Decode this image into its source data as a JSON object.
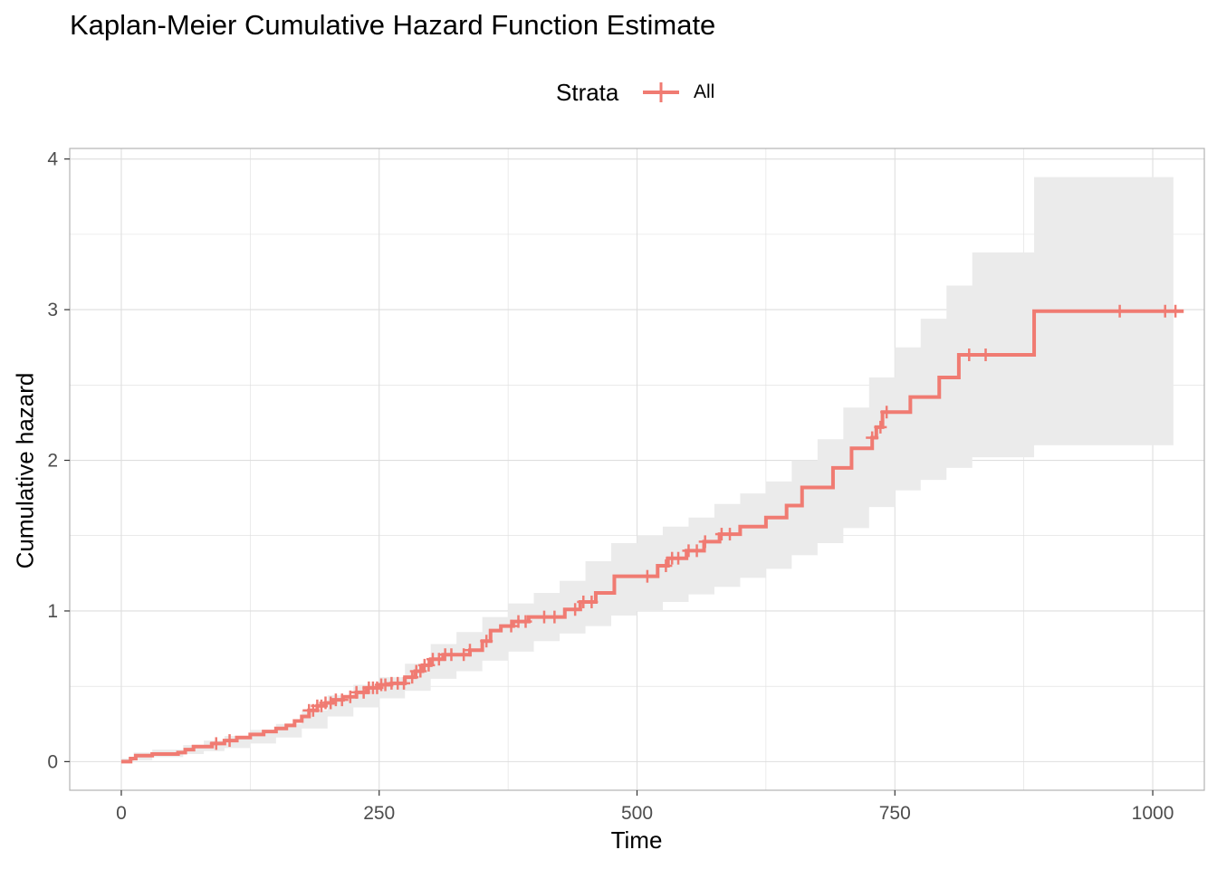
{
  "chart_data": {
    "type": "line",
    "title": "Kaplan-Meier Cumulative Hazard Function Estimate",
    "xlabel": "Time",
    "ylabel": "Cumulative hazard",
    "xlim": [
      -50,
      1050
    ],
    "ylim": [
      -0.19,
      4.07
    ],
    "x_ticks": [
      0,
      250,
      500,
      750,
      1000
    ],
    "y_ticks": [
      0,
      1,
      2,
      3,
      4
    ],
    "x_tick_labels": [
      "0",
      "250",
      "500",
      "750",
      "1000"
    ],
    "y_tick_labels": [
      "0",
      "1",
      "2",
      "3",
      "4"
    ],
    "grid": true,
    "legend": {
      "title": "Strata",
      "position": "top",
      "entries": [
        "All"
      ]
    },
    "colors": {
      "line": "#F07B72",
      "band": "#EBEBEB",
      "grid": "#DEDEDE",
      "panel_border": "#B3B3B3"
    },
    "series": [
      {
        "name": "All",
        "step": [
          [
            0,
            0
          ],
          [
            9,
            0.02
          ],
          [
            14,
            0.04
          ],
          [
            30,
            0.05
          ],
          [
            55,
            0.06
          ],
          [
            62,
            0.08
          ],
          [
            70,
            0.1
          ],
          [
            88,
            0.12
          ],
          [
            100,
            0.14
          ],
          [
            112,
            0.16
          ],
          [
            125,
            0.18
          ],
          [
            138,
            0.2
          ],
          [
            150,
            0.22
          ],
          [
            160,
            0.24
          ],
          [
            168,
            0.27
          ],
          [
            175,
            0.3
          ],
          [
            182,
            0.34
          ],
          [
            190,
            0.37
          ],
          [
            198,
            0.39
          ],
          [
            205,
            0.41
          ],
          [
            215,
            0.43
          ],
          [
            228,
            0.46
          ],
          [
            238,
            0.49
          ],
          [
            250,
            0.51
          ],
          [
            262,
            0.52
          ],
          [
            275,
            0.56
          ],
          [
            285,
            0.6
          ],
          [
            292,
            0.64
          ],
          [
            300,
            0.68
          ],
          [
            312,
            0.71
          ],
          [
            338,
            0.74
          ],
          [
            350,
            0.8
          ],
          [
            358,
            0.87
          ],
          [
            368,
            0.9
          ],
          [
            380,
            0.93
          ],
          [
            395,
            0.96
          ],
          [
            430,
            1.01
          ],
          [
            445,
            1.06
          ],
          [
            460,
            1.12
          ],
          [
            478,
            1.23
          ],
          [
            520,
            1.3
          ],
          [
            530,
            1.35
          ],
          [
            548,
            1.4
          ],
          [
            565,
            1.46
          ],
          [
            580,
            1.51
          ],
          [
            600,
            1.56
          ],
          [
            625,
            1.62
          ],
          [
            645,
            1.7
          ],
          [
            660,
            1.82
          ],
          [
            690,
            1.95
          ],
          [
            708,
            2.08
          ],
          [
            728,
            2.15
          ],
          [
            732,
            2.22
          ],
          [
            738,
            2.32
          ],
          [
            765,
            2.42
          ],
          [
            793,
            2.55
          ],
          [
            812,
            2.7
          ],
          [
            885,
            2.99
          ],
          [
            1030,
            2.99
          ]
        ],
        "band": [
          [
            0,
            0,
            0.02
          ],
          [
            12,
            0.01,
            0.06
          ],
          [
            30,
            0.03,
            0.08
          ],
          [
            60,
            0.05,
            0.11
          ],
          [
            80,
            0.07,
            0.14
          ],
          [
            100,
            0.09,
            0.17
          ],
          [
            125,
            0.12,
            0.21
          ],
          [
            150,
            0.16,
            0.25
          ],
          [
            175,
            0.22,
            0.34
          ],
          [
            200,
            0.3,
            0.44
          ],
          [
            225,
            0.36,
            0.51
          ],
          [
            250,
            0.42,
            0.56
          ],
          [
            275,
            0.47,
            0.65
          ],
          [
            300,
            0.55,
            0.78
          ],
          [
            325,
            0.6,
            0.86
          ],
          [
            350,
            0.67,
            0.96
          ],
          [
            375,
            0.73,
            1.05
          ],
          [
            400,
            0.8,
            1.12
          ],
          [
            425,
            0.85,
            1.2
          ],
          [
            450,
            0.9,
            1.33
          ],
          [
            475,
            0.97,
            1.45
          ],
          [
            500,
            1.0,
            1.5
          ],
          [
            525,
            1.06,
            1.56
          ],
          [
            550,
            1.11,
            1.62
          ],
          [
            575,
            1.16,
            1.71
          ],
          [
            600,
            1.22,
            1.78
          ],
          [
            625,
            1.28,
            1.86
          ],
          [
            650,
            1.37,
            2.0
          ],
          [
            675,
            1.45,
            2.14
          ],
          [
            700,
            1.55,
            2.35
          ],
          [
            725,
            1.69,
            2.55
          ],
          [
            750,
            1.8,
            2.75
          ],
          [
            775,
            1.87,
            2.94
          ],
          [
            800,
            1.95,
            3.16
          ],
          [
            825,
            2.02,
            3.38
          ],
          [
            885,
            2.1,
            3.88
          ],
          [
            1020,
            2.1,
            3.88
          ]
        ],
        "censor_times": [
          92,
          105,
          182,
          186,
          190,
          194,
          198,
          203,
          208,
          214,
          222,
          228,
          235,
          240,
          244,
          248,
          252,
          256,
          262,
          268,
          274,
          282,
          286,
          290,
          294,
          298,
          302,
          308,
          314,
          320,
          332,
          338,
          354,
          378,
          385,
          392,
          410,
          420,
          440,
          448,
          456,
          510,
          528,
          534,
          540,
          550,
          558,
          566,
          582,
          590,
          728,
          736,
          742,
          822,
          838,
          968,
          1012,
          1022
        ]
      }
    ]
  }
}
